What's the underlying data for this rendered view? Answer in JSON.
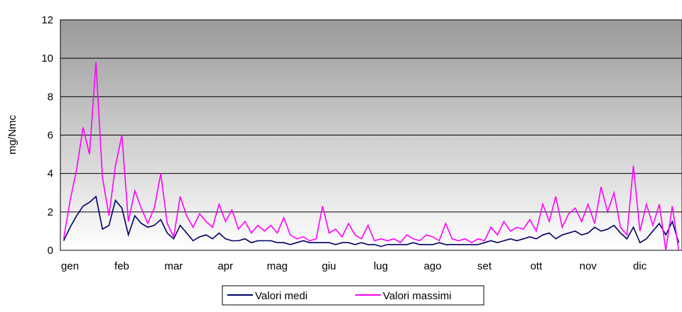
{
  "chart_data": {
    "type": "line",
    "y_label": "mg/Nmc",
    "categories": [
      "gen",
      null,
      null,
      null,
      null,
      null,
      null,
      null,
      "feb",
      null,
      null,
      null,
      null,
      null,
      null,
      null,
      "mar",
      null,
      null,
      null,
      null,
      null,
      null,
      null,
      "apr",
      null,
      null,
      null,
      null,
      null,
      null,
      null,
      "mag",
      null,
      null,
      null,
      null,
      null,
      null,
      null,
      "giu",
      null,
      null,
      null,
      null,
      null,
      null,
      null,
      "lug",
      null,
      null,
      null,
      null,
      null,
      null,
      null,
      "ago",
      null,
      null,
      null,
      null,
      null,
      null,
      null,
      "set",
      null,
      null,
      null,
      null,
      null,
      null,
      null,
      "ott",
      null,
      null,
      null,
      null,
      null,
      null,
      null,
      "nov",
      null,
      null,
      null,
      null,
      null,
      null,
      null,
      "dic",
      null,
      null,
      null,
      null,
      null,
      null,
      null
    ],
    "series": [
      {
        "name": "Valori medi",
        "color": "#000066",
        "values": [
          0.5,
          1.2,
          1.8,
          2.3,
          2.5,
          2.8,
          1.1,
          1.3,
          2.6,
          2.2,
          0.8,
          1.8,
          1.4,
          1.2,
          1.3,
          1.6,
          0.9,
          0.6,
          1.3,
          0.9,
          0.5,
          0.7,
          0.8,
          0.6,
          0.9,
          0.6,
          0.5,
          0.5,
          0.6,
          0.4,
          0.5,
          0.5,
          0.5,
          0.4,
          0.4,
          0.3,
          0.4,
          0.5,
          0.4,
          0.4,
          0.4,
          0.4,
          0.3,
          0.4,
          0.4,
          0.3,
          0.4,
          0.3,
          0.3,
          0.2,
          0.3,
          0.3,
          0.3,
          0.3,
          0.4,
          0.3,
          0.3,
          0.3,
          0.4,
          0.3,
          0.3,
          0.3,
          0.3,
          0.3,
          0.3,
          0.4,
          0.5,
          0.4,
          0.5,
          0.6,
          0.5,
          0.6,
          0.7,
          0.6,
          0.8,
          0.9,
          0.6,
          0.8,
          0.9,
          1.0,
          0.8,
          0.9,
          1.2,
          1.0,
          1.1,
          1.3,
          0.9,
          0.6,
          1.2,
          0.4,
          0.6,
          1.0,
          1.4,
          0.8,
          1.5,
          0.4
        ]
      },
      {
        "name": "Valori massimi",
        "color": "#ff00ff",
        "values": [
          0.6,
          2.6,
          4.2,
          6.4,
          5.0,
          9.8,
          3.8,
          1.8,
          4.4,
          6.0,
          1.5,
          3.1,
          2.2,
          1.4,
          2.2,
          4.0,
          1.4,
          0.7,
          2.8,
          1.8,
          1.2,
          1.9,
          1.5,
          1.2,
          2.4,
          1.5,
          2.1,
          1.1,
          1.5,
          0.9,
          1.3,
          1.0,
          1.3,
          0.9,
          1.7,
          0.8,
          0.6,
          0.7,
          0.5,
          0.6,
          2.3,
          0.9,
          1.1,
          0.7,
          1.4,
          0.8,
          0.6,
          1.3,
          0.5,
          0.6,
          0.5,
          0.6,
          0.4,
          0.8,
          0.6,
          0.5,
          0.8,
          0.7,
          0.5,
          1.4,
          0.6,
          0.5,
          0.6,
          0.4,
          0.6,
          0.5,
          1.2,
          0.8,
          1.5,
          1.0,
          1.2,
          1.1,
          1.6,
          1.0,
          2.4,
          1.5,
          2.8,
          1.2,
          1.9,
          2.2,
          1.5,
          2.4,
          1.4,
          3.3,
          2.0,
          3.0,
          1.2,
          0.8,
          4.4,
          1.0,
          2.4,
          1.3,
          2.4,
          0,
          2.3,
          0
        ]
      }
    ],
    "ylim": [
      0,
      12
    ],
    "yticks": [
      0,
      2,
      4,
      6,
      8,
      10,
      12
    ],
    "grid": true,
    "legend": "bottom"
  }
}
